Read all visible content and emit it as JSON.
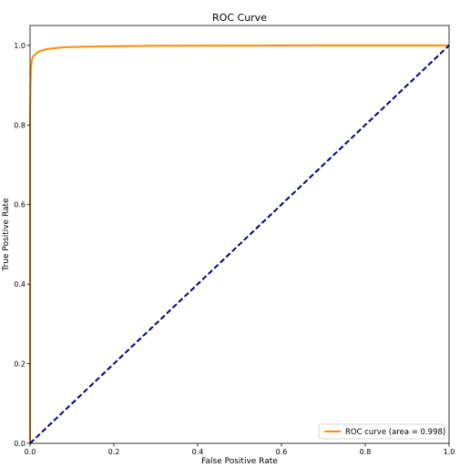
{
  "chart_data": {
    "type": "line",
    "title": "ROC Curve",
    "xlabel": "False Positive Rate",
    "ylabel": "True Positive Rate",
    "xlim": [
      0.0,
      1.0
    ],
    "ylim": [
      0.0,
      1.05
    ],
    "xticks": [
      "0.0",
      "0.2",
      "0.4",
      "0.6",
      "0.8",
      "1.0"
    ],
    "yticks": [
      "0.0",
      "0.2",
      "0.4",
      "0.6",
      "0.8",
      "1.0"
    ],
    "grid": false,
    "legend_position": "lower-right",
    "series": [
      {
        "name": "ROC curve (area = 0.998)",
        "color": "#ff8c00",
        "style": "solid",
        "x": [
          0.0,
          0.0,
          0.001,
          0.002,
          0.004,
          0.006,
          0.01,
          0.015,
          0.02,
          0.03,
          0.05,
          0.08,
          0.1,
          0.2,
          0.3,
          0.5,
          0.7,
          1.0
        ],
        "y": [
          0.0,
          0.82,
          0.9,
          0.94,
          0.96,
          0.97,
          0.975,
          0.98,
          0.984,
          0.988,
          0.992,
          0.995,
          0.996,
          0.998,
          0.999,
          0.9995,
          1.0,
          1.0
        ]
      },
      {
        "name": "",
        "color": "#000080",
        "style": "dashed",
        "x": [
          0.0,
          1.0
        ],
        "y": [
          0.0,
          1.0
        ]
      }
    ]
  }
}
